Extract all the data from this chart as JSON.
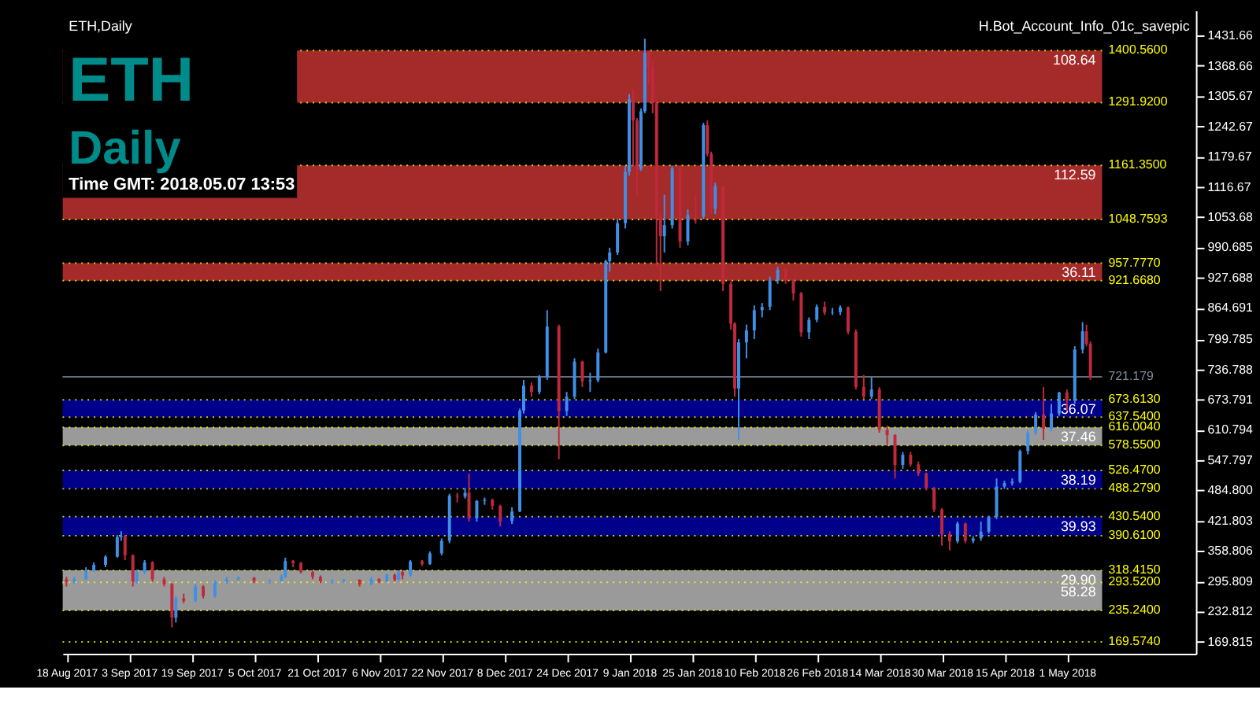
{
  "chart_data": {
    "type": "candlestick",
    "title": "ETH",
    "subtitle": "Daily",
    "annotations": [
      "ETH,Daily",
      "Time GMT: 2018.05.07 13:53",
      "H.Bot_Account_Info_01c_savepic"
    ],
    "series": [
      {
        "color": "#3f8fe6",
        "x": [
          "2017-08-20",
          "2017-08-23",
          "2017-08-25",
          "2017-08-28",
          "2017-08-31",
          "2017-09-01",
          "2017-09-05",
          "2017-09-07",
          "2017-09-15",
          "2017-09-20",
          "2017-09-25",
          "2017-09-28",
          "2017-10-01",
          "2017-10-09",
          "2017-10-12",
          "2017-10-13",
          "2017-10-25",
          "2017-10-28",
          "2017-11-04",
          "2017-11-08",
          "2017-11-11",
          "2017-11-14",
          "2017-11-19",
          "2017-11-22",
          "2017-11-24",
          "2017-11-28",
          "2017-12-01",
          "2017-12-03",
          "2017-12-10",
          "2017-12-12",
          "2017-12-13",
          "2017-12-17",
          "2017-12-19",
          "2017-12-24",
          "2017-12-26",
          "2017-12-30",
          "2018-01-01",
          "2018-01-03",
          "2018-01-04",
          "2018-01-06",
          "2018-01-08",
          "2018-01-09",
          "2018-01-12",
          "2018-01-13",
          "2018-01-18",
          "2018-01-20",
          "2018-01-24",
          "2018-01-28",
          "2018-01-31",
          "2018-02-06",
          "2018-02-08",
          "2018-02-10",
          "2018-02-12",
          "2018-02-14",
          "2018-02-16",
          "2018-02-24",
          "2018-02-26",
          "2018-03-02",
          "2018-03-04",
          "2018-03-12",
          "2018-03-20",
          "2018-04-03",
          "2018-04-07",
          "2018-04-09",
          "2018-04-11",
          "2018-04-13",
          "2018-04-15",
          "2018-04-17",
          "2018-04-19",
          "2018-04-21",
          "2018-04-23",
          "2018-04-27",
          "2018-04-29",
          "2018-05-03",
          "2018-05-05"
        ],
        "ohlc": [
          [
            295,
            305,
            290,
            300
          ],
          [
            300,
            325,
            298,
            318
          ],
          [
            318,
            335,
            315,
            330
          ],
          [
            330,
            350,
            325,
            347
          ],
          [
            347,
            392,
            345,
            388
          ],
          [
            388,
            400,
            380,
            390
          ],
          [
            295,
            320,
            290,
            315
          ],
          [
            315,
            340,
            310,
            335
          ],
          [
            220,
            265,
            210,
            260
          ],
          [
            255,
            290,
            252,
            285
          ],
          [
            265,
            298,
            262,
            295
          ],
          [
            295,
            305,
            290,
            300
          ],
          [
            300,
            306,
            296,
            303
          ],
          [
            297,
            300,
            290,
            298
          ],
          [
            298,
            310,
            295,
            305
          ],
          [
            305,
            345,
            303,
            338
          ],
          [
            296,
            300,
            290,
            297
          ],
          [
            297,
            301,
            292,
            299
          ],
          [
            290,
            305,
            288,
            300
          ],
          [
            296,
            312,
            294,
            309
          ],
          [
            299,
            318,
            297,
            315
          ],
          [
            308,
            340,
            305,
            337
          ],
          [
            332,
            358,
            330,
            354
          ],
          [
            354,
            385,
            350,
            380
          ],
          [
            380,
            478,
            375,
            474
          ],
          [
            472,
            490,
            468,
            480
          ],
          [
            427,
            465,
            420,
            463
          ],
          [
            463,
            470,
            455,
            465
          ],
          [
            421,
            450,
            415,
            441
          ],
          [
            441,
            655,
            440,
            651
          ],
          [
            651,
            715,
            645,
            703
          ],
          [
            690,
            725,
            685,
            720
          ],
          [
            720,
            860,
            715,
            826
          ],
          [
            650,
            690,
            640,
            680
          ],
          [
            680,
            760,
            675,
            753
          ],
          [
            712,
            730,
            690,
            714
          ],
          [
            714,
            780,
            710,
            772
          ],
          [
            772,
            965,
            770,
            962
          ],
          [
            962,
            990,
            940,
            980
          ],
          [
            980,
            1050,
            975,
            1041
          ],
          [
            1041,
            1160,
            1030,
            1148
          ],
          [
            1148,
            1310,
            1140,
            1299
          ],
          [
            1154,
            1280,
            1150,
            1274
          ],
          [
            1274,
            1425,
            1270,
            1396
          ],
          [
            1014,
            1100,
            980,
            1037
          ],
          [
            1037,
            1160,
            1030,
            1155
          ],
          [
            1003,
            1070,
            995,
            1058
          ],
          [
            1055,
            1250,
            1050,
            1245
          ],
          [
            1071,
            1125,
            1060,
            1118
          ],
          [
            697,
            800,
            590,
            793
          ],
          [
            793,
            830,
            760,
            818
          ],
          [
            818,
            870,
            800,
            860
          ],
          [
            860,
            875,
            845,
            867
          ],
          [
            867,
            930,
            860,
            922
          ],
          [
            922,
            950,
            915,
            944
          ],
          [
            814,
            845,
            800,
            840
          ],
          [
            840,
            872,
            835,
            867
          ],
          [
            855,
            865,
            850,
            856
          ],
          [
            856,
            870,
            850,
            866
          ],
          [
            680,
            720,
            675,
            695
          ],
          [
            538,
            565,
            530,
            559
          ],
          [
            379,
            420,
            375,
            416
          ],
          [
            380,
            390,
            375,
            385
          ],
          [
            385,
            420,
            380,
            399
          ],
          [
            399,
            432,
            395,
            430
          ],
          [
            430,
            510,
            425,
            493
          ],
          [
            493,
            505,
            488,
            500
          ],
          [
            500,
            510,
            495,
            503
          ],
          [
            503,
            570,
            500,
            567
          ],
          [
            567,
            610,
            560,
            605
          ],
          [
            605,
            648,
            600,
            643
          ],
          [
            613,
            665,
            608,
            645
          ],
          [
            645,
            690,
            640,
            689
          ],
          [
            672,
            785,
            665,
            778
          ],
          [
            778,
            835,
            770,
            816
          ]
        ]
      },
      {
        "color": "#c0283c",
        "x": [
          "2017-08-18",
          "2017-09-02",
          "2017-09-04",
          "2017-09-09",
          "2017-09-12",
          "2017-09-14",
          "2017-09-17",
          "2017-09-22",
          "2017-10-05",
          "2017-10-15",
          "2017-10-17",
          "2017-10-20",
          "2017-10-22",
          "2017-11-01",
          "2017-11-06",
          "2017-11-10",
          "2017-11-12",
          "2017-11-17",
          "2017-11-26",
          "2017-11-29",
          "2017-12-05",
          "2017-12-07",
          "2017-12-15",
          "2017-12-22",
          "2017-12-28",
          "2018-01-10",
          "2018-01-11",
          "2018-01-14",
          "2018-01-15",
          "2018-01-16",
          "2018-01-17",
          "2018-01-22",
          "2018-01-26",
          "2018-01-29",
          "2018-01-30",
          "2018-02-02",
          "2018-02-04",
          "2018-02-05",
          "2018-02-18",
          "2018-02-20",
          "2018-02-22",
          "2018-02-28",
          "2018-03-06",
          "2018-03-08",
          "2018-03-10",
          "2018-03-14",
          "2018-03-16",
          "2018-03-18",
          "2018-03-22",
          "2018-03-24",
          "2018-03-26",
          "2018-03-28",
          "2018-03-30",
          "2018-04-01",
          "2018-04-05",
          "2018-04-25",
          "2018-05-01",
          "2018-05-06",
          "2018-05-07"
        ],
        "ohlc": [
          [
            300,
            305,
            285,
            295
          ],
          [
            390,
            392,
            340,
            350
          ],
          [
            350,
            352,
            285,
            295
          ],
          [
            335,
            338,
            295,
            300
          ],
          [
            300,
            305,
            285,
            290
          ],
          [
            290,
            292,
            200,
            220
          ],
          [
            260,
            270,
            250,
            255
          ],
          [
            285,
            288,
            260,
            265
          ],
          [
            303,
            305,
            292,
            297
          ],
          [
            338,
            340,
            325,
            334
          ],
          [
            334,
            336,
            312,
            315
          ],
          [
            315,
            318,
            300,
            305
          ],
          [
            305,
            308,
            292,
            296
          ],
          [
            299,
            300,
            285,
            290
          ],
          [
            300,
            302,
            292,
            296
          ],
          [
            309,
            312,
            295,
            299
          ],
          [
            315,
            318,
            300,
            308
          ],
          [
            337,
            340,
            328,
            332
          ],
          [
            474,
            480,
            460,
            472
          ],
          [
            480,
            520,
            420,
            427
          ],
          [
            465,
            468,
            445,
            453
          ],
          [
            453,
            455,
            410,
            421
          ],
          [
            703,
            710,
            680,
            690
          ],
          [
            826,
            830,
            550,
            650
          ],
          [
            753,
            755,
            700,
            712
          ],
          [
            1299,
            1320,
            1160,
            1255
          ],
          [
            1255,
            1260,
            1100,
            1154
          ],
          [
            1396,
            1400,
            1330,
            1366
          ],
          [
            1366,
            1380,
            1270,
            1291
          ],
          [
            1291,
            1295,
            950,
            1054
          ],
          [
            1054,
            1060,
            900,
            1014
          ],
          [
            1155,
            1160,
            990,
            1003
          ],
          [
            1058,
            1100,
            1040,
            1055
          ],
          [
            1245,
            1255,
            1180,
            1185
          ],
          [
            1185,
            1190,
            1060,
            1071
          ],
          [
            1118,
            1120,
            900,
            915
          ],
          [
            915,
            920,
            820,
            832
          ],
          [
            832,
            835,
            680,
            697
          ],
          [
            944,
            948,
            915,
            923
          ],
          [
            923,
            925,
            880,
            895
          ],
          [
            895,
            898,
            805,
            814
          ],
          [
            867,
            878,
            850,
            855
          ],
          [
            866,
            868,
            810,
            815
          ],
          [
            815,
            820,
            695,
            700
          ],
          [
            700,
            725,
            675,
            680
          ],
          [
            695,
            700,
            605,
            611
          ],
          [
            611,
            620,
            580,
            600
          ],
          [
            600,
            602,
            510,
            538
          ],
          [
            559,
            565,
            535,
            539
          ],
          [
            539,
            545,
            515,
            520
          ],
          [
            520,
            522,
            485,
            490
          ],
          [
            490,
            492,
            440,
            445
          ],
          [
            445,
            448,
            370,
            394
          ],
          [
            394,
            400,
            360,
            379
          ],
          [
            416,
            418,
            375,
            380
          ],
          [
            643,
            700,
            590,
            613
          ],
          [
            689,
            695,
            650,
            672
          ],
          [
            816,
            830,
            785,
            790
          ],
          [
            790,
            795,
            715,
            721
          ]
        ]
      }
    ],
    "bands": [
      {
        "axis": "y",
        "from": 1291.92,
        "to": 1400.56,
        "label": "108.64",
        "color": "#a52a2a"
      },
      {
        "axis": "y",
        "from": 1048.7593,
        "to": 1161.35,
        "label": "112.59",
        "color": "#a52a2a"
      },
      {
        "axis": "y",
        "from": 921.668,
        "to": 957.777,
        "label": "36.11",
        "color": "#a52a2a"
      },
      {
        "axis": "y",
        "from": 637.54,
        "to": 673.613,
        "label": "36.07",
        "color": "#00008b"
      },
      {
        "axis": "y",
        "from": 578.55,
        "to": 616.004,
        "label": "37.46",
        "color": "#9a9a9a"
      },
      {
        "axis": "y",
        "from": 488.279,
        "to": 526.47,
        "label": "38.19",
        "color": "#00008b"
      },
      {
        "axis": "y",
        "from": 390.61,
        "to": 430.54,
        "label": "39.93",
        "color": "#00008b"
      },
      {
        "axis": "y",
        "from": 288.515,
        "to": 318.415,
        "label": "29.90",
        "color": "#9a9a9a"
      },
      {
        "axis": "y",
        "from": 235.24,
        "to": 293.52,
        "label": "58.28",
        "color": "#9a9a9a"
      }
    ],
    "ref_lines": [
      {
        "axis": "y",
        "value": 721.179,
        "label": "721.179",
        "color": "#7f8c99"
      },
      {
        "axis": "y",
        "value": 1400.56,
        "label": "1400.5600",
        "color": "#ffff00",
        "line_style": "dotted"
      },
      {
        "axis": "y",
        "value": 1291.92,
        "label": "1291.9200",
        "color": "#ffff00",
        "line_style": "dotted"
      },
      {
        "axis": "y",
        "value": 1161.35,
        "label": "1161.3500",
        "color": "#ffff00",
        "line_style": "dotted"
      },
      {
        "axis": "y",
        "value": 1048.7593,
        "label": "1048.7593",
        "color": "#ffff00",
        "line_style": "dotted"
      },
      {
        "axis": "y",
        "value": 957.777,
        "label": "957.7770",
        "color": "#ffff00",
        "line_style": "dotted"
      },
      {
        "axis": "y",
        "value": 921.668,
        "label": "921.6680",
        "color": "#ffff00",
        "line_style": "dotted"
      },
      {
        "axis": "y",
        "value": 673.613,
        "label": "673.6130",
        "color": "#ffff00",
        "line_style": "dotted"
      },
      {
        "axis": "y",
        "value": 637.54,
        "label": "637.5400",
        "color": "#ffff00",
        "line_style": "dotted"
      },
      {
        "axis": "y",
        "value": 616.004,
        "label": "616.0040",
        "color": "#ffff00",
        "line_style": "dotted"
      },
      {
        "axis": "y",
        "value": 578.55,
        "label": "578.5500",
        "color": "#ffff00",
        "line_style": "dotted"
      },
      {
        "axis": "y",
        "value": 526.47,
        "label": "526.4700",
        "color": "#ffff00",
        "line_style": "dotted"
      },
      {
        "axis": "y",
        "value": 488.279,
        "label": "488.2790",
        "color": "#ffff00",
        "line_style": "dotted"
      },
      {
        "axis": "y",
        "value": 430.54,
        "label": "430.5400",
        "color": "#ffff00",
        "line_style": "dotted"
      },
      {
        "axis": "y",
        "value": 390.61,
        "label": "390.6100",
        "color": "#ffff00",
        "line_style": "dotted"
      },
      {
        "axis": "y",
        "value": 318.415,
        "label": "318.4150",
        "color": "#ffff00",
        "line_style": "dotted"
      },
      {
        "axis": "y",
        "value": 293.52,
        "label": "293.5200",
        "color": "#ffff00",
        "line_style": "dotted"
      },
      {
        "axis": "y",
        "value": 235.24,
        "label": "235.2400",
        "color": "#ffff00",
        "line_style": "dotted"
      },
      {
        "axis": "y",
        "value": 169.574,
        "label": "169.5740",
        "color": "#ffff00",
        "line_style": "dotted"
      }
    ],
    "xlim": [
      "2017-08-17",
      "2018-06-03"
    ],
    "xticks": [
      {
        "value": "2017-08-18",
        "label": "18 Aug 2017"
      },
      {
        "value": "2017-09-03",
        "label": "3 Sep 2017"
      },
      {
        "value": "2017-09-19",
        "label": "19 Sep 2017"
      },
      {
        "value": "2017-10-05",
        "label": "5 Oct 2017"
      },
      {
        "value": "2017-10-21",
        "label": "21 Oct 2017"
      },
      {
        "value": "2017-11-06",
        "label": "6 Nov 2017"
      },
      {
        "value": "2017-11-22",
        "label": "22 Nov 2017"
      },
      {
        "value": "2017-12-08",
        "label": "8 Dec 2017"
      },
      {
        "value": "2017-12-24",
        "label": "24 Dec 2017"
      },
      {
        "value": "2018-01-09",
        "label": "9 Jan 2018"
      },
      {
        "value": "2018-01-25",
        "label": "25 Jan 2018"
      },
      {
        "value": "2018-02-10",
        "label": "10 Feb 2018"
      },
      {
        "value": "2018-02-26",
        "label": "26 Feb 2018"
      },
      {
        "value": "2018-03-14",
        "label": "14 Mar 2018"
      },
      {
        "value": "2018-03-30",
        "label": "30 Mar 2018"
      },
      {
        "value": "2018-04-15",
        "label": "15 Apr 2018"
      },
      {
        "value": "2018-05-01",
        "label": "1 May 2018"
      }
    ],
    "ylim": [
      145,
      1484
    ],
    "yticks": [
      169.815,
      232.812,
      295.809,
      358.806,
      421.803,
      {
        "value": 484.8,
        "label": "484.800"
      },
      547.797,
      610.794,
      673.791,
      736.788,
      799.785,
      864.691,
      927.688,
      990.685,
      1053.68,
      1116.67,
      1179.67,
      1242.67,
      1305.67,
      1368.66,
      1431.66
    ],
    "grid": false
  }
}
